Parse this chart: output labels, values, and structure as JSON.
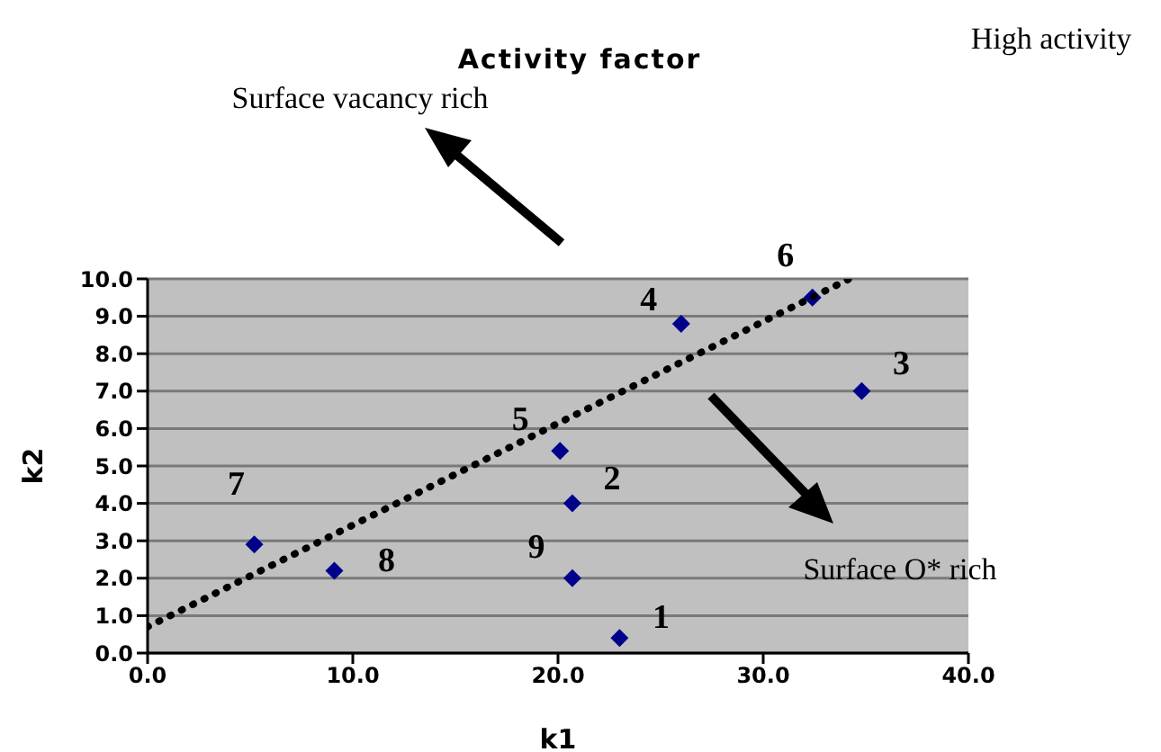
{
  "chart_data": {
    "type": "scatter",
    "title": "Activity factor",
    "xlabel": "k1",
    "ylabel": "k2",
    "xlim": [
      0,
      40
    ],
    "xticks": [
      {
        "value": 0,
        "label": "0.0"
      },
      {
        "value": 10,
        "label": "10.0"
      },
      {
        "value": 20,
        "label": "20.0"
      },
      {
        "value": 30,
        "label": "30.0"
      },
      {
        "value": 40,
        "label": "40.0"
      }
    ],
    "ylim": [
      0,
      10
    ],
    "yticks": [
      {
        "value": 0,
        "label": "0.0"
      },
      {
        "value": 1,
        "label": "1.0"
      },
      {
        "value": 2,
        "label": "2.0"
      },
      {
        "value": 3,
        "label": "3.0"
      },
      {
        "value": 4,
        "label": "4.0"
      },
      {
        "value": 5,
        "label": "5.0"
      },
      {
        "value": 6,
        "label": "6.0"
      },
      {
        "value": 7,
        "label": "7.0"
      },
      {
        "value": 8,
        "label": "8.0"
      },
      {
        "value": 9,
        "label": "9.0"
      },
      {
        "value": 10,
        "label": "10.0"
      }
    ],
    "grid": "y",
    "series": [
      {
        "type": "scatter",
        "color": "#00008b",
        "marker": "diamond",
        "x": [
          23.0,
          20.7,
          34.8,
          26.0,
          20.1,
          32.4,
          5.2,
          9.1,
          20.7
        ],
        "values": [
          0.4,
          4.0,
          7.0,
          8.8,
          5.4,
          9.5,
          2.9,
          2.2,
          2.0
        ]
      },
      {
        "type": "line",
        "color": "#000000",
        "line_style": "dotted",
        "x": [
          0,
          34.2
        ],
        "values": [
          0.7,
          10.0
        ]
      }
    ],
    "annotations": [
      {
        "text": "1",
        "x": 23.0,
        "y": 0.4
      },
      {
        "text": "2",
        "x": 20.7,
        "y": 4.0
      },
      {
        "text": "3",
        "x": 34.8,
        "y": 7.0
      },
      {
        "text": "4",
        "x": 26.0,
        "y": 8.8
      },
      {
        "text": "5",
        "x": 20.1,
        "y": 5.4
      },
      {
        "text": "6",
        "x": 32.4,
        "y": 9.5
      },
      {
        "text": "7",
        "x": 5.2,
        "y": 2.9
      },
      {
        "text": "8",
        "x": 9.1,
        "y": 2.2
      },
      {
        "text": "9",
        "x": 20.7,
        "y": 2.0
      },
      "Surface vacancy rich",
      "High activity",
      "Surface O* rich"
    ]
  }
}
